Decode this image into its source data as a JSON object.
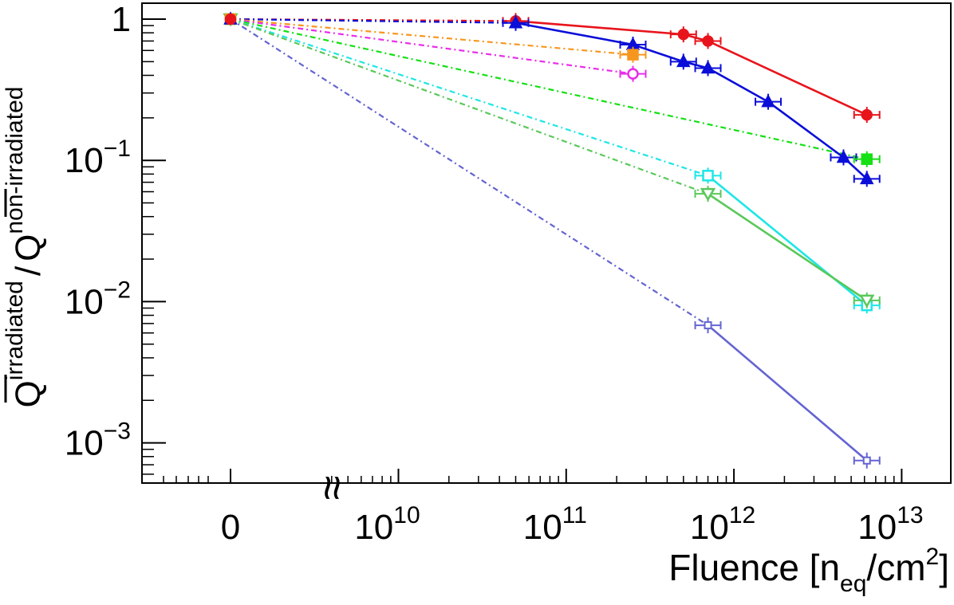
{
  "chart_data": {
    "type": "line",
    "scale": {
      "x": "log with broken axis (0 shown separately)",
      "y": "log"
    },
    "xlabel": {
      "main": "Fluence [n",
      "sub": "eq",
      "mid": "/cm",
      "sup": "2",
      "end": "]"
    },
    "ylabel": {
      "q": "Q",
      "irr": "irradiated",
      "slash": "/",
      "nonirr": "non-irradiated"
    },
    "xlim": [
      1000000000.0,
      13000000000000.0
    ],
    "ylim": [
      0.00052,
      1.38
    ],
    "x_ticks": [
      {
        "label": "0",
        "value": 0
      },
      {
        "base": "10",
        "exp": "10",
        "value": 10000000000.0
      },
      {
        "base": "10",
        "exp": "11",
        "value": 100000000000.0
      },
      {
        "base": "10",
        "exp": "12",
        "value": 1000000000000.0
      },
      {
        "base": "10",
        "exp": "13",
        "value": 10000000000000.0
      }
    ],
    "y_ticks": [
      {
        "label": "1",
        "value": 1
      },
      {
        "base": "10",
        "exp": "−1",
        "value": 0.1
      },
      {
        "base": "10",
        "exp": "−2",
        "value": 0.01
      },
      {
        "base": "10",
        "exp": "−3",
        "value": 0.001
      }
    ],
    "axis_break_symbol": "≈",
    "series": [
      {
        "name": "red",
        "color": "#e8141c",
        "marker": "filled-circle",
        "x": [
          50000000000.0,
          500000000000.0,
          700000000000.0,
          6200000000000.0
        ],
        "y": [
          0.97,
          0.78,
          0.7,
          0.21
        ]
      },
      {
        "name": "blue",
        "color": "#0a0ed8",
        "marker": "filled-triangle",
        "x": [
          50000000000.0,
          250000000000.0,
          500000000000.0,
          700000000000.0,
          1600000000000.0,
          4500000000000.0,
          6200000000000.0
        ],
        "y": [
          0.94,
          0.66,
          0.5,
          0.45,
          0.26,
          0.105,
          0.074
        ]
      },
      {
        "name": "orange",
        "color": "#f7961e",
        "marker": "filled-square",
        "x": [
          250000000000.0
        ],
        "y": [
          0.56
        ]
      },
      {
        "name": "magenta",
        "color": "#e82ee8",
        "marker": "open-circle",
        "x": [
          250000000000.0
        ],
        "y": [
          0.41
        ]
      },
      {
        "name": "green",
        "color": "#14e014",
        "marker": "filled-square",
        "x": [
          6200000000000.0
        ],
        "y": [
          0.102
        ]
      },
      {
        "name": "cyan",
        "color": "#1ee6e6",
        "marker": "open-square",
        "x": [
          700000000000.0,
          6200000000000.0
        ],
        "y": [
          0.078,
          0.0094
        ]
      },
      {
        "name": "lightgreen",
        "color": "#5ac85a",
        "marker": "open-triangle",
        "x": [
          700000000000.0,
          6200000000000.0
        ],
        "y": [
          0.058,
          0.0102
        ]
      },
      {
        "name": "slateblue",
        "color": "#6464d2",
        "marker": "open-cross",
        "x": [
          700000000000.0,
          6200000000000.0
        ],
        "y": [
          0.0068,
          0.00075
        ]
      }
    ],
    "reference_point_at_zero": 1.0,
    "grid": false,
    "legend": "none"
  }
}
